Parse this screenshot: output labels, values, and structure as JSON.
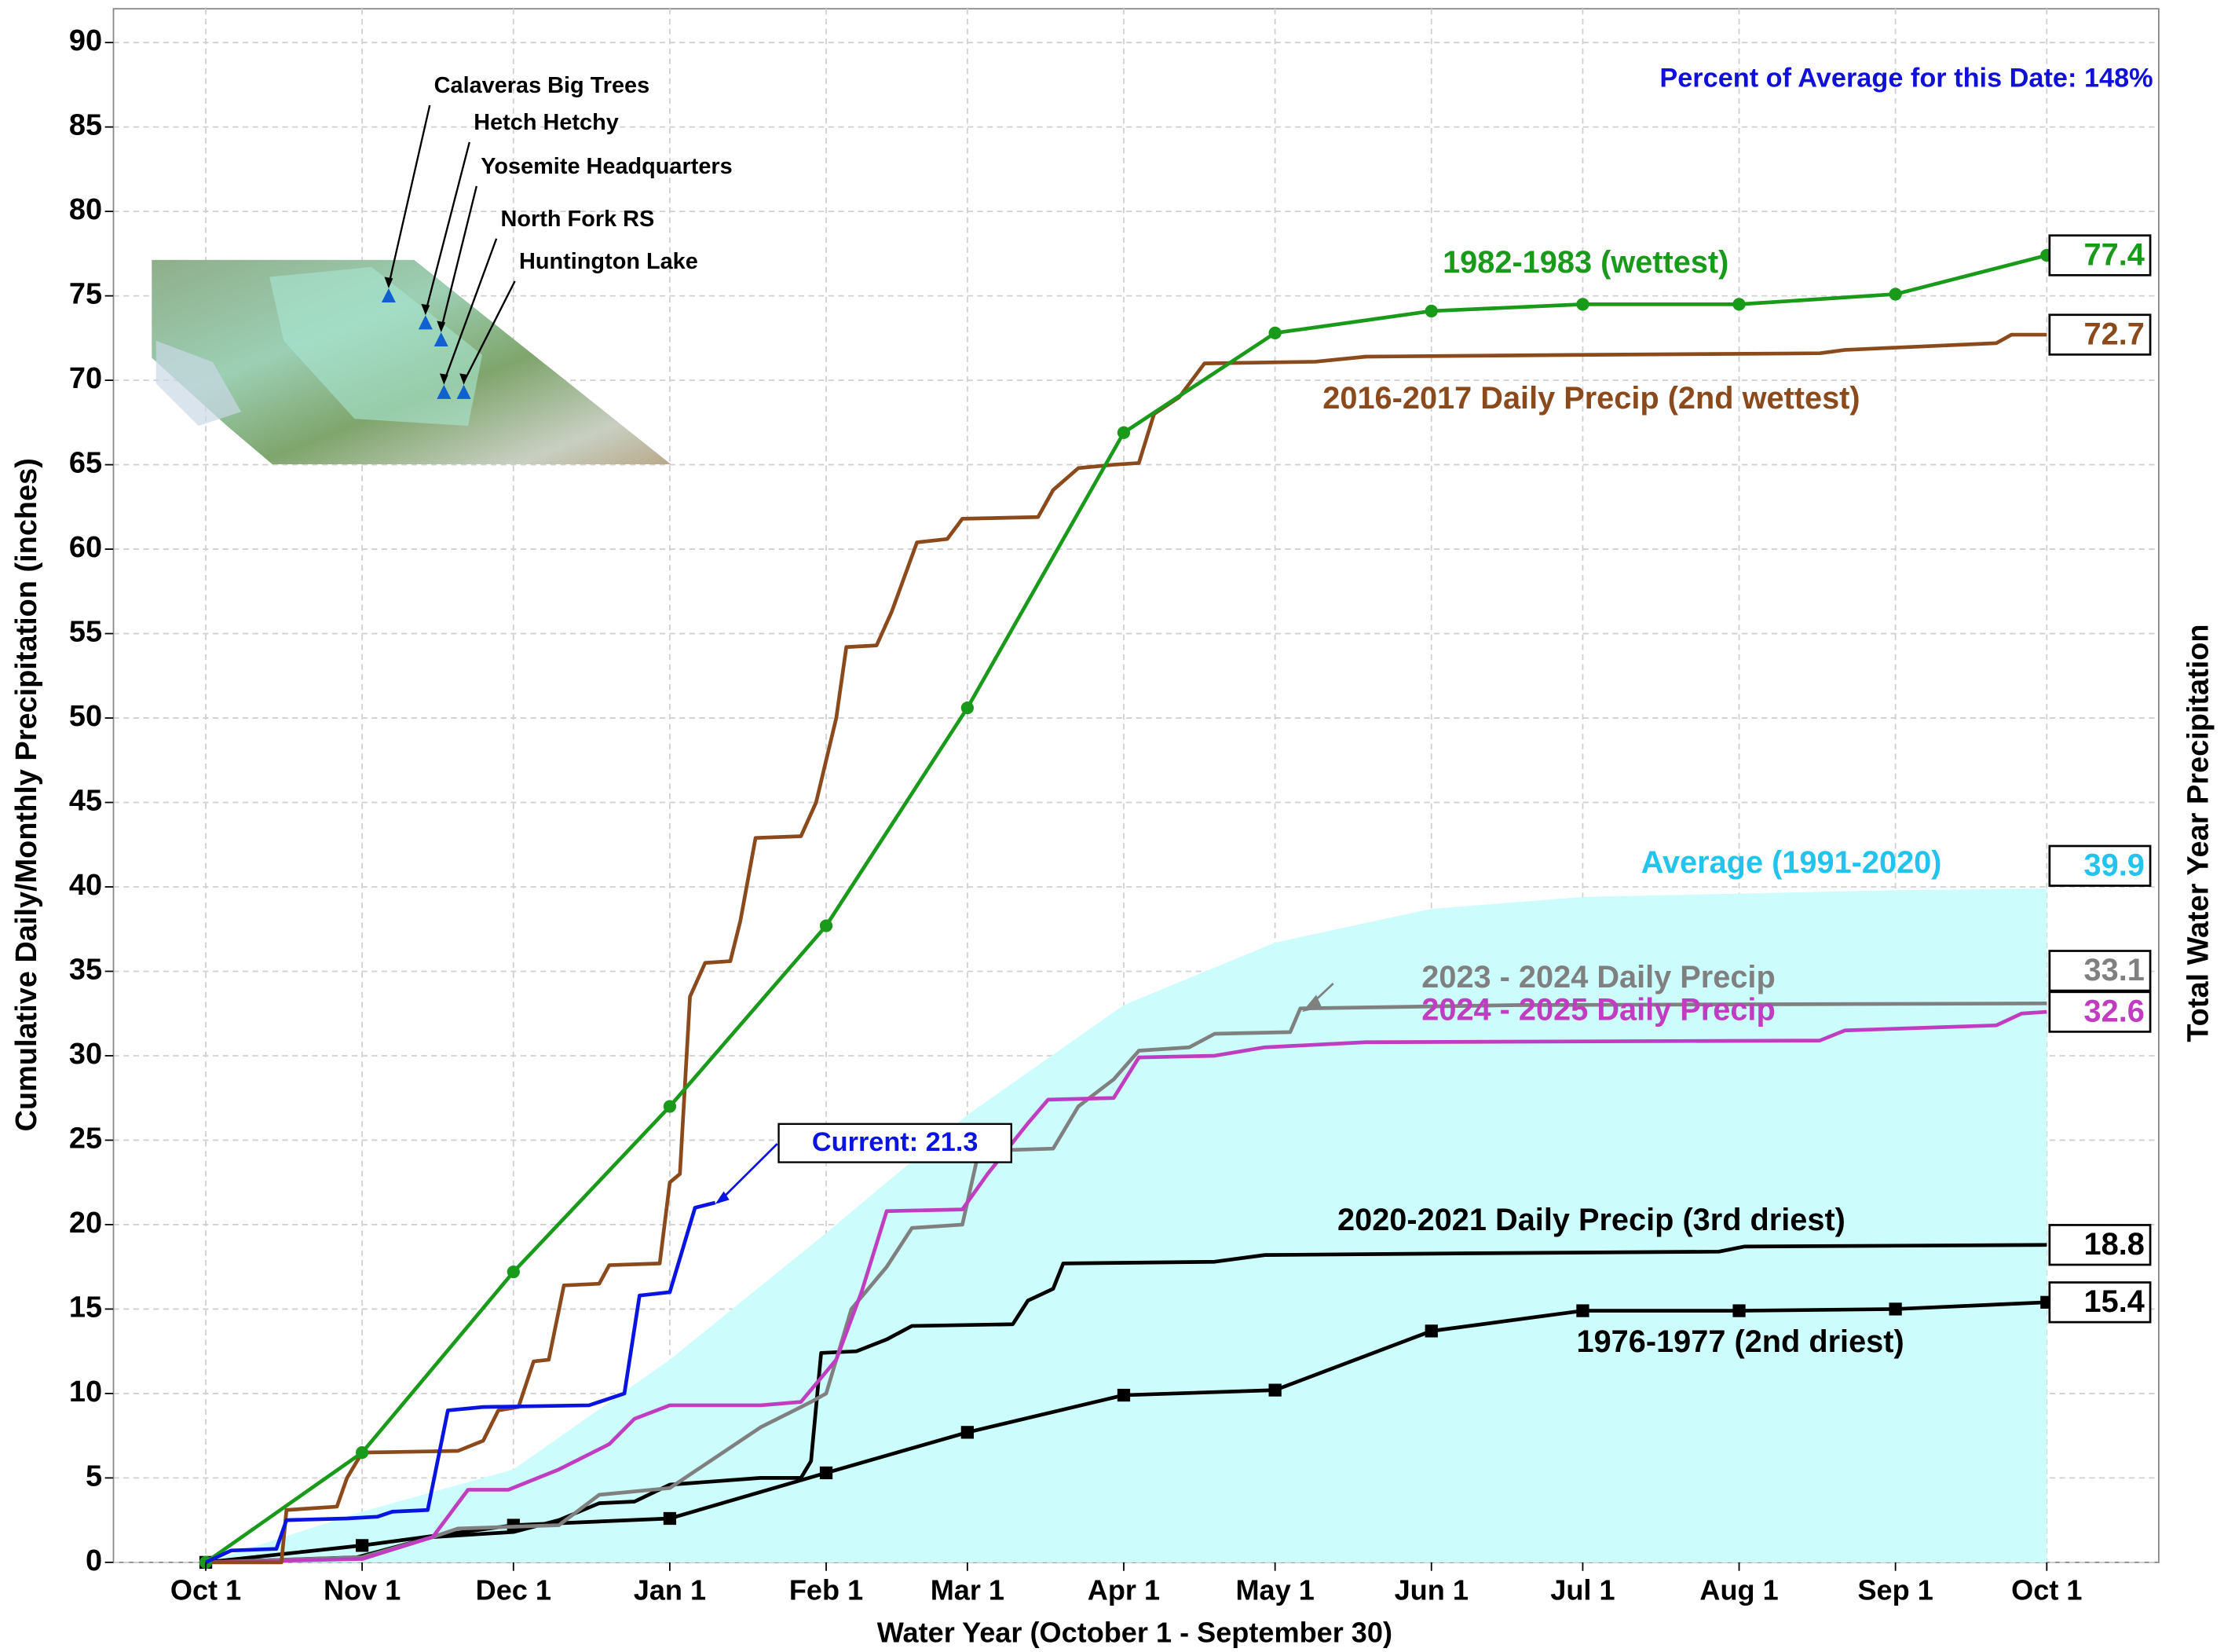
{
  "chart_data": {
    "type": "line",
    "x_label": "Water Year (October 1 - September 30)",
    "y_label": "Cumulative Daily/Monthly Precipitation (inches)",
    "y2_label": "Total Water Year Precipitation",
    "annotations": [
      "Percent of Average for this Date: 148%"
    ],
    "map_labels": [
      "Calaveras Big Trees",
      "Hetch Hetchy",
      "Yosemite Headquarters",
      "North Fork RS",
      "Huntington Lake"
    ],
    "xlim": [
      -18.3,
      387.2
    ],
    "ylim": [
      0,
      92
    ],
    "grid": true,
    "xticks": [
      {
        "value": 0,
        "label": "Oct 1"
      },
      {
        "value": 31,
        "label": "Nov 1"
      },
      {
        "value": 61,
        "label": "Dec 1"
      },
      {
        "value": 92,
        "label": "Jan 1"
      },
      {
        "value": 123,
        "label": "Feb 1"
      },
      {
        "value": 151,
        "label": "Mar 1"
      },
      {
        "value": 182,
        "label": "Apr 1"
      },
      {
        "value": 212,
        "label": "May 1"
      },
      {
        "value": 243,
        "label": "Jun 1"
      },
      {
        "value": 273,
        "label": "Jul 1"
      },
      {
        "value": 304,
        "label": "Aug 1"
      },
      {
        "value": 335,
        "label": "Sep 1"
      },
      {
        "value": 365,
        "label": "Oct 1"
      }
    ],
    "yticks": [
      0,
      5,
      10,
      15,
      20,
      25,
      30,
      35,
      40,
      45,
      50,
      55,
      60,
      65,
      70,
      75,
      80,
      85,
      90
    ],
    "series": [
      {
        "name": "Average (1991-2020)",
        "color": "#22c4ee",
        "fill": "#ccfcfc",
        "kind": "area",
        "x": [
          0,
          31,
          61,
          92,
          123,
          151,
          182,
          212,
          243,
          273,
          304,
          335,
          365
        ],
        "values": [
          0,
          3,
          5.5,
          12,
          19.5,
          26.5,
          33,
          36.7,
          38.7,
          39.4,
          39.6,
          39.8,
          39.9
        ]
      },
      {
        "name": "1976-1977 (2nd driest)",
        "color": "#000000",
        "marker": "square",
        "x": [
          0,
          31,
          61,
          92,
          123,
          151,
          182,
          212,
          243,
          273,
          304,
          335,
          365
        ],
        "values": [
          0,
          1.0,
          2.2,
          2.6,
          5.3,
          7.7,
          9.9,
          10.2,
          13.7,
          14.9,
          14.9,
          15.0,
          15.4
        ]
      },
      {
        "name": "2020-2021 Daily Precip (3rd driest)",
        "color": "#000000",
        "x": [
          0,
          30,
          45,
          61,
          70,
          78,
          85,
          92,
          110,
          118,
          120,
          122,
          129,
          135,
          140,
          160,
          163,
          168,
          170,
          200,
          210,
          250,
          300,
          305,
          365
        ],
        "values": [
          0,
          0.3,
          1.5,
          1.8,
          2.5,
          3.5,
          3.6,
          4.6,
          5.0,
          5.0,
          6,
          12.4,
          12.5,
          13.2,
          14,
          14.1,
          15.5,
          16.2,
          17.7,
          17.8,
          18.2,
          18.3,
          18.4,
          18.7,
          18.8
        ]
      },
      {
        "name": "2023 - 2024 Daily Precip",
        "color": "#808080",
        "x": [
          0,
          31,
          45,
          50,
          70,
          78,
          92,
          100,
          110,
          120,
          123,
          128,
          135,
          140,
          150,
          153,
          157,
          168,
          173,
          180,
          185,
          195,
          200,
          215,
          217,
          260,
          365
        ],
        "values": [
          0,
          0.3,
          1.5,
          2,
          2.2,
          4,
          4.4,
          6,
          8,
          9.5,
          10,
          15,
          17.5,
          19.8,
          20,
          24,
          24.4,
          24.5,
          27,
          28.6,
          30.3,
          30.5,
          31.3,
          31.4,
          32.8,
          33,
          33.1
        ]
      },
      {
        "name": "2024 - 2025 Daily Precip",
        "color": "#c03cc0",
        "x": [
          0,
          31,
          45,
          52,
          60,
          70,
          80,
          85,
          92,
          110,
          118,
          125,
          130,
          135,
          150,
          155,
          163,
          167,
          180,
          185,
          200,
          210,
          230,
          320,
          325,
          355,
          360,
          365
        ],
        "values": [
          0,
          0.2,
          1.5,
          4.3,
          4.3,
          5.5,
          7,
          8.5,
          9.3,
          9.3,
          9.5,
          12,
          16,
          20.8,
          20.9,
          23,
          26,
          27.4,
          27.5,
          29.9,
          30,
          30.5,
          30.8,
          30.9,
          31.5,
          31.8,
          32.5,
          32.6
        ]
      },
      {
        "name": "2016-2017 Daily Precip (2nd wettest)",
        "color": "#8b4a1c",
        "x": [
          0,
          15,
          16,
          26,
          28,
          31,
          50,
          55,
          58,
          62,
          65,
          68,
          71,
          78,
          80,
          90,
          92,
          94,
          96,
          99,
          104,
          106,
          109,
          118,
          121,
          125,
          127,
          133,
          136,
          141,
          147,
          150,
          165,
          168,
          173,
          180,
          185,
          188,
          193,
          198,
          220,
          230,
          270,
          320,
          325,
          355,
          358,
          365
        ],
        "values": [
          0,
          0,
          3.1,
          3.3,
          5,
          6.5,
          6.6,
          7.2,
          9,
          9.2,
          11.9,
          12,
          16.4,
          16.5,
          17.6,
          17.7,
          22.5,
          23,
          33.5,
          35.5,
          35.6,
          38,
          42.9,
          43,
          45,
          50,
          54.2,
          54.3,
          56.3,
          60.4,
          60.6,
          61.8,
          61.9,
          63.5,
          64.8,
          65,
          65.1,
          68,
          69,
          71,
          71.1,
          71.4,
          71.5,
          71.6,
          71.8,
          72.2,
          72.7,
          72.7
        ]
      },
      {
        "name": "1982-1983 (wettest)",
        "color": "#1a9a1a",
        "marker": "circle",
        "x": [
          0,
          31,
          61,
          92,
          123,
          151,
          182,
          212,
          243,
          273,
          304,
          335,
          365
        ],
        "values": [
          0,
          6.5,
          17.2,
          27.0,
          37.7,
          50.6,
          66.9,
          72.8,
          74.1,
          74.5,
          74.5,
          75.1,
          77.4
        ]
      },
      {
        "name": "Current: 21.3",
        "color": "#0a14e0",
        "x": [
          0,
          5,
          14,
          16,
          28,
          34,
          37,
          44,
          48,
          55,
          76,
          83,
          86,
          92,
          95,
          97,
          101
        ],
        "values": [
          0,
          0.7,
          0.8,
          2.5,
          2.6,
          2.7,
          3,
          3.1,
          9,
          9.2,
          9.3,
          10,
          15.8,
          16,
          19,
          21,
          21.3
        ]
      }
    ]
  }
}
